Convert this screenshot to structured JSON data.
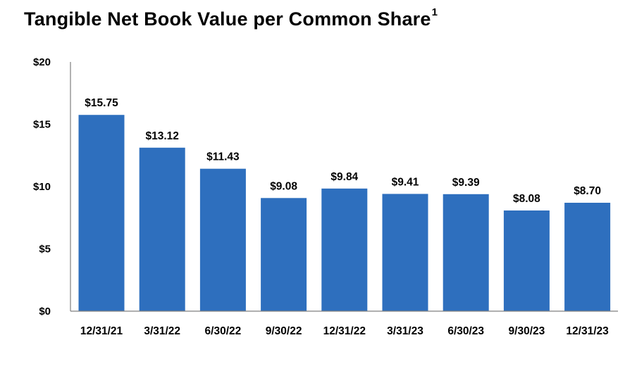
{
  "chart_data": {
    "type": "bar",
    "title": "Tangible Net Book Value per Common Share",
    "title_footnote": "1",
    "categories": [
      "12/31/21",
      "3/31/22",
      "6/30/22",
      "9/30/22",
      "12/31/22",
      "3/31/23",
      "6/30/23",
      "9/30/23",
      "12/31/23"
    ],
    "values": [
      15.75,
      13.12,
      11.43,
      9.08,
      9.84,
      9.41,
      9.39,
      8.08,
      8.7
    ],
    "data_labels": [
      "$15.75",
      "$13.12",
      "$11.43",
      "$9.08",
      "$9.84",
      "$9.41",
      "$9.39",
      "$8.08",
      "$8.70"
    ],
    "y_ticks": [
      0,
      5,
      10,
      15,
      20
    ],
    "y_tick_labels": [
      "$0",
      "$5",
      "$10",
      "$15",
      "$20"
    ],
    "ylim": [
      0,
      20
    ],
    "xlabel": "",
    "ylabel": "",
    "grid": false,
    "legend": "none",
    "bar_color": "#2E6FBE",
    "axis_color": "#7F7F7F"
  }
}
